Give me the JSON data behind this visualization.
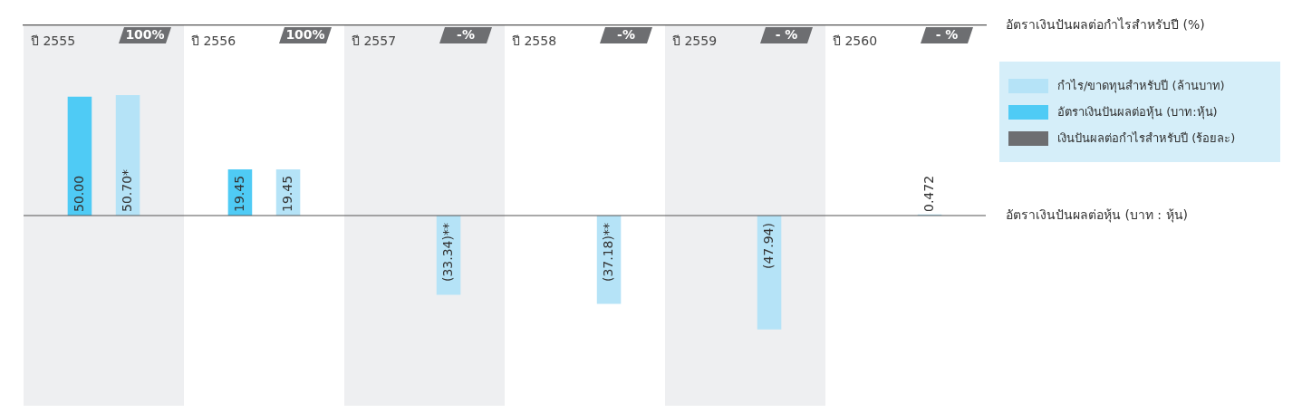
{
  "chart_data": {
    "type": "bar",
    "categories": [
      "ปี 2555",
      "ปี 2556",
      "ปี 2557",
      "ปี 2558",
      "ปี 2559",
      "ปี 2560"
    ],
    "ylabel": "อัตราเงินปันผลต่อหุ้น (บาท : หุ้น)",
    "y2label": "อัตราเงินปันผลต่อกำไรสำหรับปี (%)",
    "series": [
      {
        "name": "กำไร/ขาดทุนสำหรับปี (ล้านบาท)",
        "color": "#b5e3f7",
        "values": [
          50.7,
          19.45,
          -33.34,
          -37.18,
          -47.94,
          0.472
        ],
        "value_labels": [
          "50.70*",
          "19.45",
          "(33.34)**",
          "(37.18)**",
          "(47.94)",
          "0.472"
        ]
      },
      {
        "name": "อัตราเงินปันผลต่อหุ้น (บาท:หุ้น)",
        "color": "#4fcbf5",
        "values": [
          50.0,
          19.45,
          null,
          null,
          null,
          null
        ],
        "value_labels": [
          "50.00",
          "19.45",
          null,
          null,
          null,
          null
        ]
      },
      {
        "name": "เงินปันผลต่อกำไรสำหรับปี (ร้อยละ)",
        "color": "#6d6e71",
        "type": "other",
        "values": [
          null,
          null,
          null,
          null,
          null,
          null
        ],
        "value_labels": [
          "100%",
          "100%",
          "-%",
          "-%",
          "- %",
          "- %"
        ]
      }
    ],
    "ref_lines": [
      {
        "axis": "y",
        "value": 0
      }
    ],
    "legend": "right"
  }
}
